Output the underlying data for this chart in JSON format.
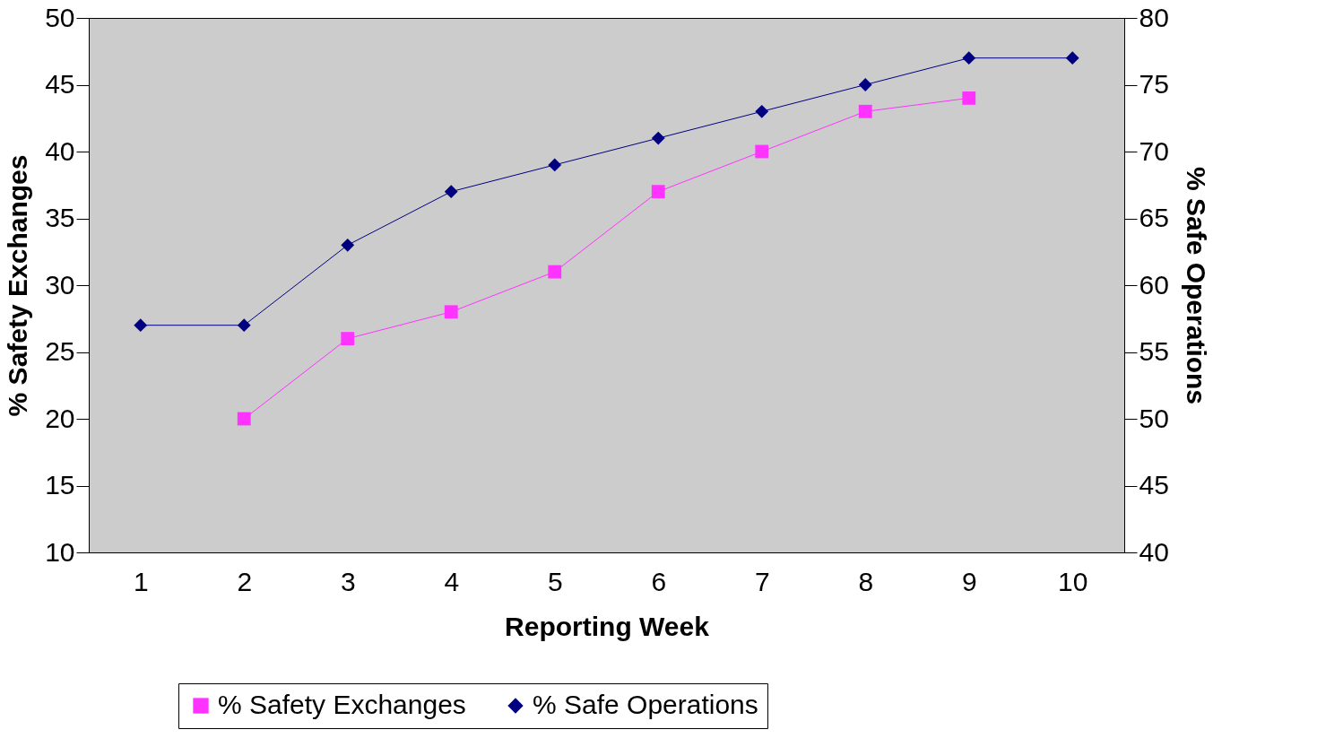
{
  "chart_data": {
    "type": "line",
    "xlabel": "Reporting Week",
    "ylabel": "% Safety Exchanges",
    "y2label": "% Safe Operations",
    "categories": [
      "1",
      "2",
      "3",
      "4",
      "5",
      "6",
      "7",
      "8",
      "9",
      "10"
    ],
    "series": [
      {
        "name": "% Safety Exchanges",
        "color": "#ff33ff",
        "marker": "square",
        "values": [
          null,
          20,
          26,
          28,
          31,
          37,
          40,
          43,
          44,
          null
        ]
      },
      {
        "name": "% Safe Operations",
        "color": "#000080",
        "marker": "diamond",
        "axis": "y2",
        "values": [
          57,
          57,
          63,
          67,
          69,
          71,
          73,
          75,
          77,
          77
        ]
      }
    ],
    "ylim": [
      10,
      50
    ],
    "yticks": [
      10,
      15,
      20,
      25,
      30,
      35,
      40,
      45,
      50
    ],
    "y2lim": [
      40,
      80
    ],
    "y2ticks": [
      40,
      45,
      50,
      55,
      60,
      65,
      70,
      75,
      80
    ],
    "grid": false,
    "legend": "bottom",
    "line_style": "solid"
  }
}
